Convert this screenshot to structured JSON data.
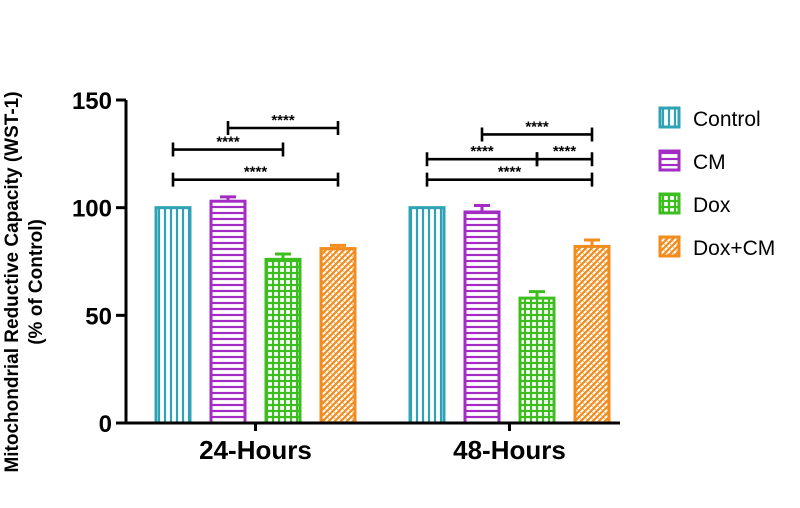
{
  "chart_data": {
    "type": "bar",
    "categories": [
      "24-Hours",
      "48-Hours"
    ],
    "series": [
      {
        "name": "Control",
        "color": "#2fa3b5",
        "pattern": "vertical",
        "values": [
          100,
          100
        ],
        "errors": [
          0,
          0
        ]
      },
      {
        "name": "CM",
        "color": "#a32cc4",
        "pattern": "horizontal",
        "values": [
          103,
          98
        ],
        "errors": [
          2,
          3
        ]
      },
      {
        "name": "Dox",
        "color": "#3cbf1e",
        "pattern": "grid",
        "values": [
          76,
          58
        ],
        "errors": [
          2.5,
          3
        ]
      },
      {
        "name": "Dox+CM",
        "color": "#f28c1e",
        "pattern": "diagonal",
        "values": [
          81,
          82
        ],
        "errors": [
          1.5,
          3
        ]
      }
    ],
    "ylabel_line1": "Mitochondrial Reductive Capacity (WST-1)",
    "ylabel_line2": "(% of Control)",
    "ylim": [
      0,
      150
    ],
    "yticks": [
      {
        "value": 0,
        "label": "0"
      },
      {
        "value": 50,
        "label": "50"
      },
      {
        "value": 100,
        "label": "100"
      },
      {
        "value": 150,
        "label": "150"
      }
    ],
    "legend_position": "right",
    "significance": [
      {
        "category": 0,
        "from_series": 0,
        "to_series": 2,
        "level": 127,
        "label": "****"
      },
      {
        "category": 0,
        "from_series": 1,
        "to_series": 3,
        "level": 137,
        "label": "****"
      },
      {
        "category": 0,
        "from_series": 0,
        "to_series": 3,
        "level": 113,
        "label": "****"
      },
      {
        "category": 1,
        "from_series": 1,
        "to_series": 3,
        "level": 134,
        "label": "****"
      },
      {
        "category": 1,
        "from_series": 0,
        "to_series": 2,
        "level": 122.5,
        "label": "****"
      },
      {
        "category": 1,
        "from_series": 2,
        "to_series": 3,
        "level": 122.5,
        "label": "****"
      },
      {
        "category": 1,
        "from_series": 0,
        "to_series": 3,
        "level": 113,
        "label": "****"
      }
    ]
  }
}
